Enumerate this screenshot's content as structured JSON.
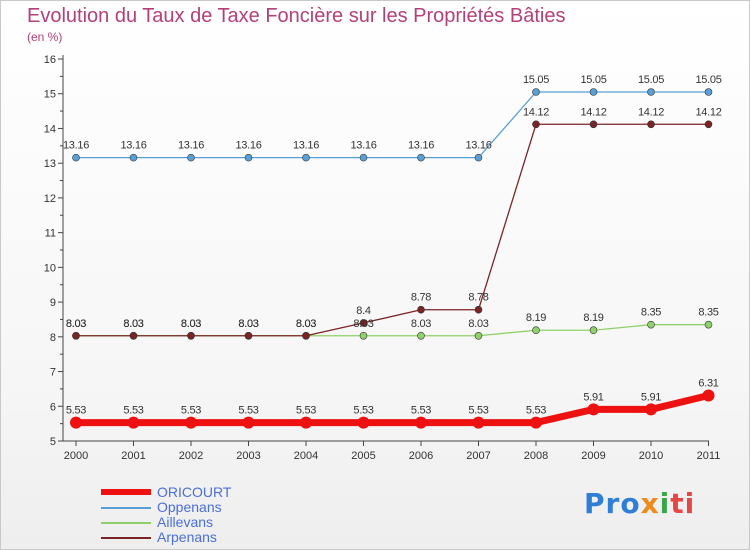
{
  "chart_data": {
    "type": "line",
    "title": "Evolution du Taux de Taxe Foncière sur les Propriétés Bâties",
    "subtitle": "(en %)",
    "categories": [
      "2000",
      "2001",
      "2002",
      "2003",
      "2004",
      "2005",
      "2006",
      "2007",
      "2008",
      "2009",
      "2010",
      "2011"
    ],
    "ylim": [
      5,
      16
    ],
    "yticks": [
      "5",
      "6",
      "7",
      "8",
      "9",
      "10",
      "11",
      "12",
      "13",
      "14",
      "15",
      "16"
    ],
    "grid": false,
    "series": [
      {
        "name": "ORICOURT",
        "color": "#ee1111",
        "bold": true,
        "values": [
          5.53,
          5.53,
          5.53,
          5.53,
          5.53,
          5.53,
          5.53,
          5.53,
          5.53,
          5.91,
          5.91,
          6.31
        ],
        "labels": [
          "5.53",
          "5.53",
          "5.53",
          "5.53",
          "5.53",
          "5.53",
          "5.53",
          "5.53",
          "5.53",
          "5.91",
          "5.91",
          "6.31"
        ]
      },
      {
        "name": "Oppenans",
        "color": "#5a9fd4",
        "bold": false,
        "values": [
          13.16,
          13.16,
          13.16,
          13.16,
          13.16,
          13.16,
          13.16,
          13.16,
          15.05,
          15.05,
          15.05,
          15.05
        ],
        "labels": [
          "13.16",
          "13.16",
          "13.16",
          "13.16",
          "13.16",
          "13.16",
          "13.16",
          "13.16",
          "15.05",
          "15.05",
          "15.05",
          "15.05"
        ]
      },
      {
        "name": "Aillevans",
        "color": "#8ed16a",
        "bold": false,
        "values": [
          8.03,
          8.03,
          8.03,
          8.03,
          8.03,
          8.03,
          8.03,
          8.03,
          8.19,
          8.19,
          8.35,
          8.35
        ],
        "labels": [
          "8.03",
          "8.03",
          "8.03",
          "8.03",
          "8.03",
          "8.03",
          "8.03",
          "8.03",
          "8.19",
          "8.19",
          "8.35",
          "8.35"
        ]
      },
      {
        "name": "Arpenans",
        "color": "#7a2525",
        "bold": false,
        "values": [
          8.03,
          8.03,
          8.03,
          8.03,
          8.03,
          8.4,
          8.78,
          8.78,
          14.12,
          14.12,
          14.12,
          14.12
        ],
        "labels": [
          "8.03",
          "8.03",
          "8.03",
          "8.03",
          "8.03",
          "8.4",
          "8.78",
          "8.78",
          "14.12",
          "14.12",
          "14.12",
          "14.12"
        ]
      }
    ]
  },
  "legend": [
    {
      "label": "ORICOURT",
      "color": "#ee1111"
    },
    {
      "label": "Oppenans",
      "color": "#5a9fd4"
    },
    {
      "label": "Aillevans",
      "color": "#8ed16a"
    },
    {
      "label": "Arpenans",
      "color": "#7a2525"
    }
  ],
  "logo": {
    "p1": "Pro",
    "p2": "x",
    "p3": "i",
    "p4": "ti"
  }
}
